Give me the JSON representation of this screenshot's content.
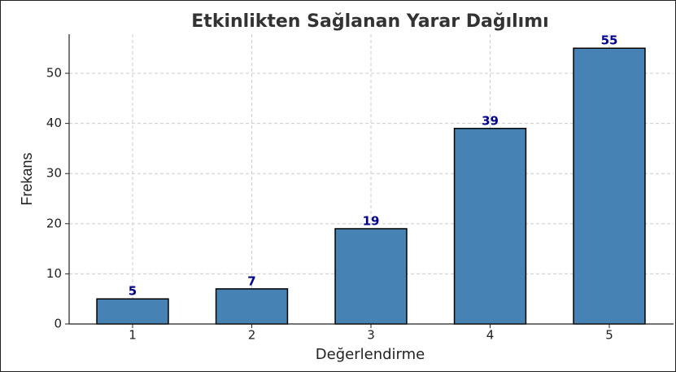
{
  "chart_data": {
    "type": "bar",
    "title": "Etkinlikten Sağlanan Yarar Dağılımı",
    "x_label": "Değerlendirme",
    "y_label": "Frekans",
    "categories": [
      "1",
      "2",
      "3",
      "4",
      "5"
    ],
    "values": [
      5,
      7,
      19,
      39,
      55
    ],
    "color": "#4682b4",
    "edge_color": "#000000",
    "label_color": "#00008b",
    "ylim": [
      0,
      57.8
    ],
    "yticks": [
      0,
      10,
      20,
      30,
      40,
      50
    ],
    "grid": true
  }
}
